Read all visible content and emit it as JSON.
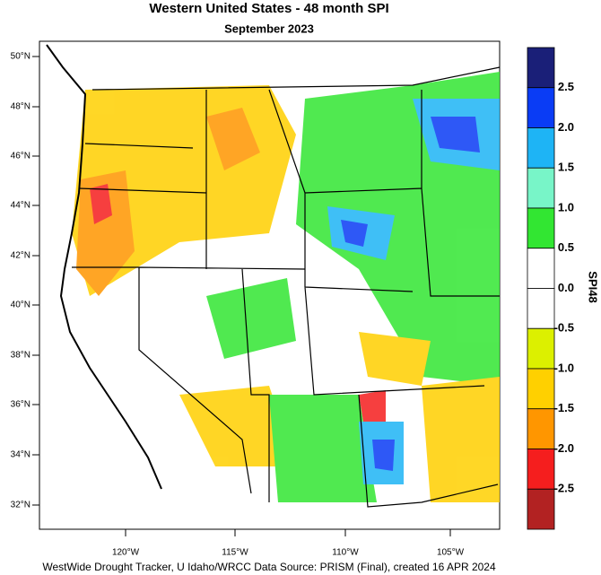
{
  "header": {
    "title": "Western United States - 48 month SPI",
    "subtitle": "September 2023"
  },
  "map": {
    "lat_labels": [
      "50°N",
      "48°N",
      "46°N",
      "44°N",
      "42°N",
      "40°N",
      "38°N",
      "36°N",
      "34°N",
      "32°N"
    ],
    "lon_labels": [
      "120°W",
      "115°W",
      "110°W",
      "105°W"
    ]
  },
  "colorbar": {
    "title": "SPI48",
    "labels": [
      "2.5",
      "2.0",
      "1.5",
      "1.0",
      "0.5",
      "0.0",
      "-0.5",
      "-1.0",
      "-1.5",
      "-2.0",
      "-2.5"
    ],
    "colors": [
      "#1a1f78",
      "#0a3cf5",
      "#1eb4f5",
      "#78f5c8",
      "#32e632",
      "#ffffff",
      "#ffffff",
      "#dcf000",
      "#ffd000",
      "#ff9600",
      "#f51e1e",
      "#b22222"
    ]
  },
  "footer": "WestWide Drought Tracker, U Idaho/WRCC Data Source: PRISM (Final), created 16 APR 2024"
}
